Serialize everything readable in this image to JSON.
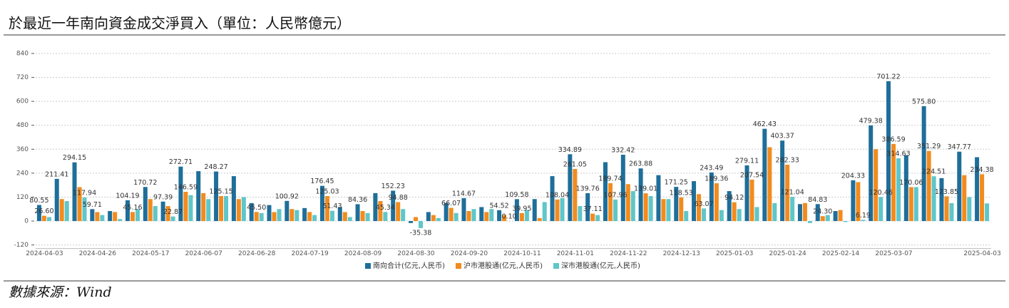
{
  "chart_data": {
    "type": "bar",
    "title": "於最近一年南向資金成交淨買入（單位：人民幣億元）",
    "source": "數據來源：Wind",
    "categories": [
      "2024-04-03",
      null,
      null,
      "2024-04-26",
      null,
      null,
      "2024-05-17",
      null,
      null,
      "2024-06-07",
      null,
      null,
      "2024-06-28",
      null,
      null,
      "2024-07-19",
      null,
      null,
      "2024-08-09",
      null,
      null,
      "2024-08-30",
      null,
      null,
      "2024-09-20",
      null,
      null,
      "2024-10-11",
      null,
      null,
      "2024-11-01",
      null,
      null,
      "2024-11-22",
      null,
      null,
      "2024-12-13",
      null,
      null,
      "2025-01-03",
      null,
      null,
      "2025-01-24",
      null,
      null,
      "2025-02-14",
      null,
      null,
      "2025-03-07",
      null,
      null,
      null,
      null,
      "2025-04-03"
    ],
    "series": [
      {
        "name": "南向合计(亿元,人民币)",
        "color": "#1f6e9a",
        "values": [
          80.55,
          211.41,
          294.15,
          59.71,
          50,
          104.19,
          170.72,
          97.39,
          272.71,
          250,
          248.27,
          225,
          90,
          80,
          100.92,
          65,
          176.45,
          70,
          84.36,
          140,
          152.23,
          -10,
          45,
          90,
          114.67,
          70,
          54.52,
          109.58,
          110,
          225,
          334.89,
          139.76,
          295,
          332.42,
          263.88,
          230,
          171.25,
          200,
          243.49,
          150,
          279.11,
          462.43,
          403.37,
          85,
          84.83,
          50,
          204.33,
          479.38,
          701.22,
          330,
          575.8,
          215,
          347.77,
          320
        ],
        "value_labels": [
          "80.55",
          "211.41",
          "294.15",
          "59.71",
          null,
          "104.19",
          "170.72",
          "97.39",
          "272.71",
          null,
          "248.27",
          null,
          null,
          null,
          "100.92",
          null,
          "176.45",
          null,
          "84.36",
          null,
          "152.23",
          null,
          null,
          null,
          "114.67",
          null,
          "54.52",
          "109.58",
          null,
          null,
          "334.89",
          "139.76",
          null,
          "332.42",
          "263.88",
          null,
          "171.25",
          null,
          "243.49",
          null,
          "279.11",
          "462.43",
          "403.37",
          null,
          "84.83",
          null,
          "204.33",
          "479.38",
          "701.22",
          null,
          "575.80",
          null,
          "347.77",
          null
        ]
      },
      {
        "name": "沪市港股通(亿元,人民币)",
        "color": "#f28b1e",
        "values": [
          26.6,
          110,
          170,
          45,
          45,
          45.16,
          110,
          75,
          146.59,
          140,
          125.15,
          110,
          45.5,
          45,
          60,
          45,
          125.03,
          45,
          50,
          100,
          94.88,
          20,
          30,
          66.07,
          50,
          45,
          30,
          39.95,
          15,
          108.04,
          261.05,
          37.11,
          189.74,
          185,
          139.01,
          110,
          118.53,
          135,
          189.36,
          94.12,
          207.54,
          370,
          282.33,
          90,
          24.3,
          55,
          195,
          360,
          386.59,
          170.06,
          351.29,
          123.85,
          230,
          234.38
        ],
        "value_labels": [
          "26.60",
          null,
          null,
          null,
          null,
          "45.16",
          null,
          null,
          "146.59",
          null,
          "125.15",
          null,
          "45.50",
          null,
          null,
          null,
          "125.03",
          null,
          null,
          null,
          "94.88",
          null,
          null,
          "66.07",
          null,
          null,
          null,
          "39.95",
          null,
          "108.04",
          "261.05",
          "37.11",
          "189.74",
          null,
          "139.01",
          null,
          "118.53",
          null,
          "189.36",
          "94.12",
          "207.54",
          null,
          "282.33",
          null,
          "24.30",
          null,
          null,
          null,
          "386.59",
          "170.06",
          "351.29",
          "123.85",
          null,
          "234.38"
        ]
      },
      {
        "name": "深市港股通(亿元,人民币)",
        "color": "#5fc6c9",
        "values": [
          20,
          100,
          117.94,
          30,
          10,
          60,
          75,
          22.87,
          130,
          110,
          125,
          120,
          40,
          60,
          55,
          30,
          51.43,
          20,
          40,
          45.34,
          60,
          -35.38,
          15,
          40,
          60,
          60,
          0.1,
          55,
          95,
          115,
          75,
          30,
          107.96,
          150,
          125,
          110,
          50,
          63.07,
          55,
          60,
          70,
          90,
          121.04,
          -10,
          30,
          -5,
          6.19,
          120.46,
          314.63,
          170,
          224.51,
          90,
          120,
          88.42
        ],
        "value_labels": [
          null,
          null,
          "117.94",
          null,
          null,
          null,
          null,
          "22.87",
          null,
          null,
          null,
          null,
          null,
          null,
          null,
          null,
          "51.43",
          null,
          null,
          "45.34",
          null,
          "-35.38",
          null,
          null,
          null,
          null,
          "0.10",
          null,
          null,
          null,
          null,
          null,
          "107.96",
          null,
          null,
          null,
          null,
          "63.07",
          null,
          null,
          null,
          null,
          "121.04",
          null,
          null,
          null,
          "6.19",
          "120.46",
          "314.63",
          null,
          "224.51",
          null,
          null,
          null
        ]
      }
    ],
    "ylim": [
      -120,
      840
    ],
    "yticks": [
      -120,
      0,
      120,
      240,
      360,
      480,
      600,
      720,
      840
    ],
    "grid": true,
    "legend": "bottom"
  }
}
